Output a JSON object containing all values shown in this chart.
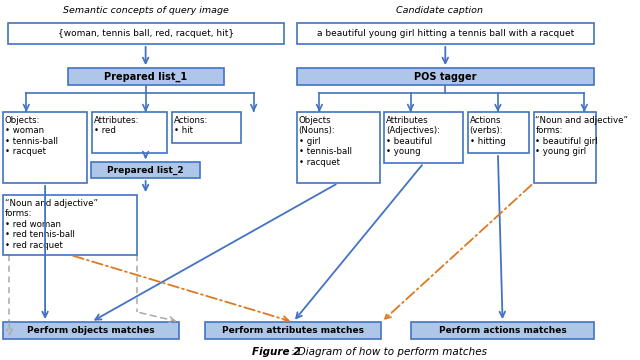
{
  "fig_width": 6.4,
  "fig_height": 3.6,
  "dpi": 100,
  "bg_color": "#ffffff",
  "box_blue_fill": "#aec6e8",
  "box_blue_border": "#4472c4",
  "box_white_fill": "#ffffff",
  "box_white_border": "#4472c4",
  "arrow_blue": "#4472c4",
  "arrow_orange": "#e07820",
  "arrow_gray": "#aaaaaa",
  "top_label_left": "Semantic concepts of query image",
  "top_label_right": "Candidate caption",
  "input_left": "{woman, tennis ball, red, racquet, hit}",
  "input_right": "a beautiful young girl hitting a tennis ball with a racquet",
  "prepared_list1": "Prepared list_1",
  "pos_tagger": "POS tagger",
  "objects_left": "Objects:\n• woman\n• tennis-ball\n• racquet",
  "attributes_left": "Attributes:\n• red",
  "actions_left": "Actions:\n• hit",
  "prepared_list2": "Prepared list_2",
  "noun_adj_left": "“Noun and adjective”\nforms:\n• red woman\n• red tennis-ball\n• red racquet",
  "objects_right": "Objects\n(Nouns):\n• girl\n• tennis-ball\n• racquet",
  "attributes_right": "Attributes\n(Adjectives):\n• beautiful\n• young",
  "actions_right": "Actions\n(verbs):\n• hitting",
  "noun_adj_right": "“Noun and adjective”\nforms:\n• beautiful girl\n• young girl",
  "bottom_left": "Perform objects matches",
  "bottom_mid": "Perform attributes matches",
  "bottom_right": "Perform actions matches",
  "figure_caption_bold": "Figure 2",
  "figure_caption_normal": ": Diagram of how to perform matches"
}
